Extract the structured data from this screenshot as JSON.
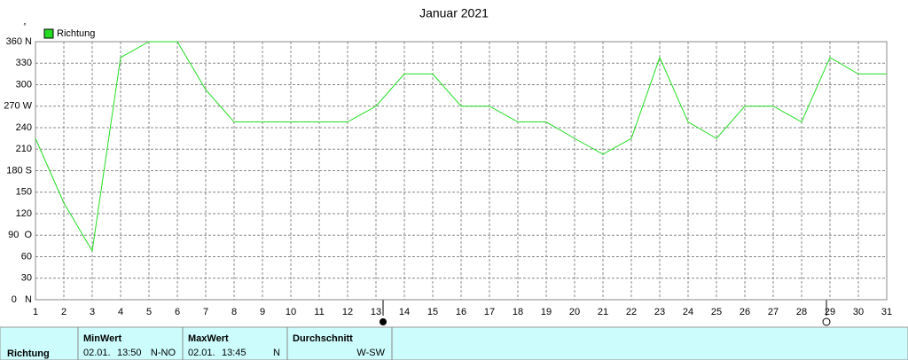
{
  "chart_data": {
    "type": "line",
    "title": "Januar 2021",
    "unit": "°",
    "x": [
      1,
      2,
      3,
      4,
      5,
      6,
      7,
      8,
      9,
      10,
      11,
      12,
      13,
      14,
      15,
      16,
      17,
      18,
      19,
      20,
      21,
      22,
      23,
      24,
      25,
      26,
      27,
      28,
      29,
      30,
      31
    ],
    "xlim": [
      1,
      31
    ],
    "xticks": [
      1,
      2,
      3,
      4,
      5,
      6,
      7,
      8,
      9,
      10,
      11,
      12,
      13,
      14,
      15,
      16,
      17,
      18,
      19,
      20,
      21,
      22,
      23,
      24,
      25,
      26,
      27,
      28,
      29,
      30,
      31
    ],
    "ylim": [
      0,
      360
    ],
    "yticks": [
      {
        "value": 0,
        "label": "0   N"
      },
      30,
      60,
      {
        "value": 90,
        "label": "90  O"
      },
      120,
      150,
      {
        "value": 180,
        "label": "180 S"
      },
      210,
      240,
      {
        "value": 270,
        "label": "270 W"
      },
      300,
      330,
      {
        "value": 360,
        "label": "360 N"
      }
    ],
    "grid": true,
    "legend": "top-left",
    "series": [
      {
        "name": "Richtung",
        "color": "#22dd22",
        "values": [
          225,
          135,
          68,
          338,
          360,
          360,
          293,
          248,
          248,
          248,
          248,
          248,
          270,
          315,
          315,
          270,
          270,
          248,
          248,
          225,
          203,
          225,
          338,
          248,
          225,
          270,
          270,
          248,
          338,
          315,
          315
        ]
      }
    ]
  },
  "table": {
    "row_label": "Richtung",
    "columns": [
      {
        "header": "MinWert",
        "date": "02.01.",
        "time": "13:50",
        "value": "N-NO"
      },
      {
        "header": "MaxWert",
        "date": "02.01.",
        "time": "13:45",
        "value": "N"
      },
      {
        "header": "Durchschnitt",
        "value": "W-SW"
      }
    ]
  }
}
